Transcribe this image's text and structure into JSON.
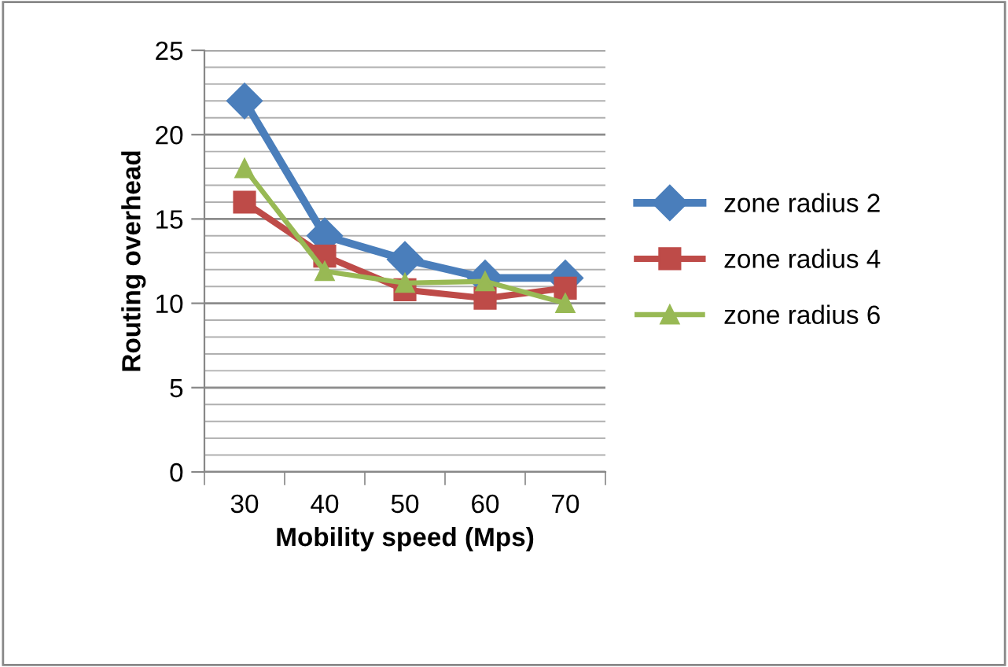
{
  "chart_data": {
    "type": "line",
    "xlabel": "Mobility speed (Mps)",
    "ylabel": "Routing overhead",
    "categories": [
      "30",
      "40",
      "50",
      "60",
      "70"
    ],
    "series": [
      {
        "name": "zone radius 2",
        "color": "#4a7ebb",
        "marker": "diamond",
        "values": [
          22,
          14,
          12.6,
          11.5,
          11.5
        ]
      },
      {
        "name": "zone radius 4",
        "color": "#be4b48",
        "marker": "square",
        "values": [
          16,
          12.8,
          10.8,
          10.3,
          10.9
        ]
      },
      {
        "name": "zone radius 6",
        "color": "#98b954",
        "marker": "triangle",
        "values": [
          18,
          11.9,
          11.2,
          11.3,
          10
        ]
      }
    ],
    "ylim": [
      0,
      25
    ],
    "yticks": [
      0,
      5,
      10,
      15,
      20,
      25
    ],
    "grid": "y",
    "legend": "right",
    "line_style": "solid"
  }
}
